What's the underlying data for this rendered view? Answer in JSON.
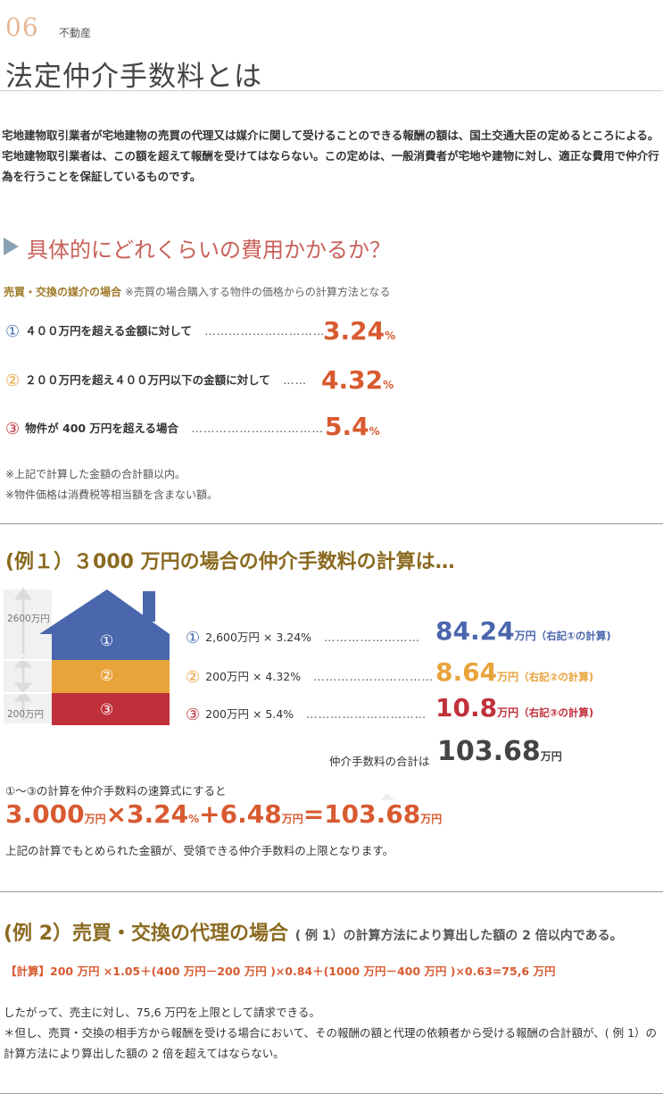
{
  "header": {
    "number": "06",
    "category": "不動産",
    "title": "法定仲介手数料とは"
  },
  "intro": "宅地建物取引業者が宅地建物の売買の代理又は媒介に関して受けることのできる報酬の額は、国土交通大臣の定めるところによる。宅地建物取引業者は、この額を超えて報酬を受けてはならない。この定めは、一般消費者が宅地や建物に対し、適正な費用で仲介行為を行うことを保証しているものです。",
  "section": {
    "heading": "具体的にどれくらいの費用かかるか？",
    "sub_label": "売買・交換の媒介の場合",
    "sub_note": "※売買の場合購入する物件の価格からの計算方法となる",
    "rates": [
      {
        "mark": "①",
        "mark_color": "#4a6fb5",
        "label": "４００万円を超える金額に対して",
        "dots": "…………………………",
        "value": "3.24",
        "unit": "%"
      },
      {
        "mark": "②",
        "mark_color": "#e8a33a",
        "label": "２００万円を超え４００万円以下の金額に対して",
        "dots": "……",
        "value": "4.32",
        "unit": "%"
      },
      {
        "mark": "③",
        "mark_color": "#c0303a",
        "label": "物件が 400 万円を超える場合",
        "dots": "……………………………",
        "value": "5.4",
        "unit": "%"
      }
    ],
    "notes": [
      "※上記で計算した金額の合計額以内。",
      "※物件価格は消費税等相当額を含まない額。"
    ]
  },
  "example1": {
    "heading": "(例１）３000 万円の場合の仲介手数料の計算は…",
    "house": {
      "top_label": "2600万円",
      "bottom_label": "200万円",
      "colors": {
        "roof": "#4a66ad",
        "mid": "#e8a33a",
        "bottom": "#c0303a"
      },
      "marks": [
        "①",
        "②",
        "③"
      ]
    },
    "rows": [
      {
        "mark": "①",
        "mark_color": "#4a6fb5",
        "expr": "2,600万円 × 3.24%",
        "dots": "……………………",
        "value": "84.24",
        "unit": "万円",
        "note": "（右記①の計算)",
        "color": "#4a66ad"
      },
      {
        "mark": "②",
        "mark_color": "#e8a33a",
        "expr": "200万円 × 4.32%",
        "dots": "…………………………",
        "value": "8.64",
        "unit": "万円",
        "note": "（右記②の計算)",
        "color": "#e8a33a"
      },
      {
        "mark": "③",
        "mark_color": "#c0303a",
        "expr": "200万円 × 5.4%",
        "dots": "…………………………",
        "value": "10.8",
        "unit": "万円",
        "note": "（右記③の計算)",
        "color": "#c0303a"
      }
    ],
    "total_label": "仲介手数料の合計は",
    "total_value": "103.68",
    "total_unit": "万円",
    "formula_intro": "①～③の計算を仲介手数料の速算式にすると",
    "formula": {
      "a": "3.000",
      "a_unit": "万円",
      "op1": "×3.24",
      "op1_unit": "%",
      "b": "+6.48",
      "b_unit": "万円",
      "c": "=103.68",
      "c_unit": "万円"
    },
    "formula_note": "上記の計算でもとめられた金額が、受領できる仲介手数料の上限となります。"
  },
  "example2": {
    "heading": "(例 2）売買・交換の代理の場合",
    "heading_note": "( 例 1）の計算方法により算出した額の 2 倍以内である。",
    "calc": "【計算】200 万円 ×1.05＋(400 万円－200 万円 )×0.84＋(1000 万円－400 万円 )×0.63=75,6 万円",
    "body": "したがって、売主に対し、75,6 万円を上限として請求できる。\n＊但し、売買・交換の相手方から報酬を受ける場合において、その報酬の額と代理の依頼者から受ける報酬の合計額が、( 例 1）の計算方法により算出した額の 2 倍を超えてはならない。"
  }
}
